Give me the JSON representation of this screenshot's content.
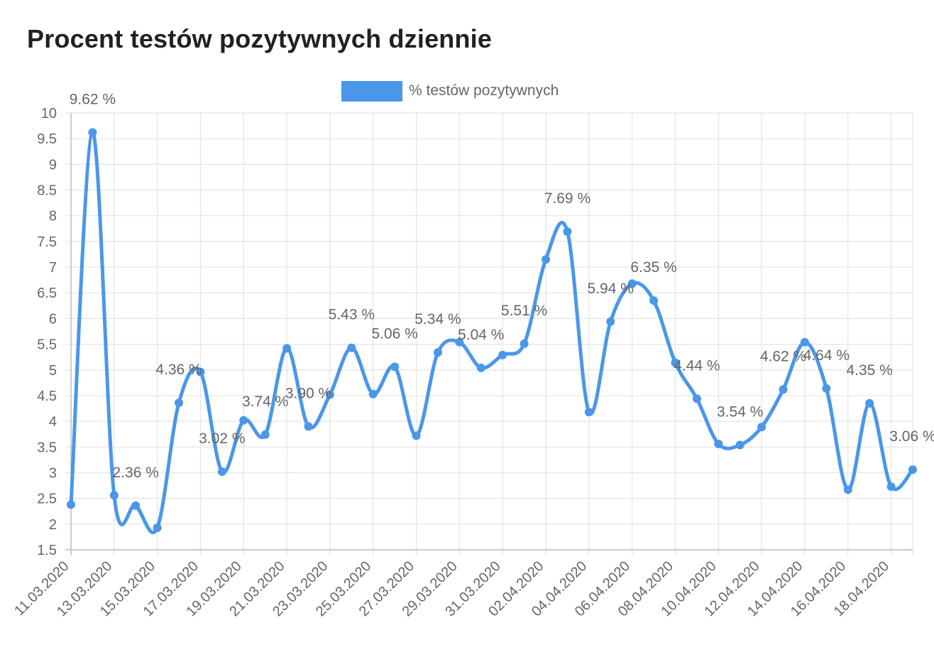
{
  "chart_data": {
    "type": "line",
    "title": "Procent testów pozytywnych dziennie",
    "legend": {
      "position": "top",
      "entries": [
        "% testów pozytywnych"
      ]
    },
    "grid": true,
    "color": "#4a97ea",
    "ylim": [
      1.5,
      10
    ],
    "y_ticks": [
      "1.5",
      "2",
      "2.5",
      "3",
      "3.5",
      "4",
      "4.5",
      "5",
      "5.5",
      "6",
      "6.5",
      "7",
      "7.5",
      "8",
      "8.5",
      "9",
      "9.5",
      "10"
    ],
    "x_tick_labels": [
      "11.03.2020",
      "13.03.2020",
      "15.03.2020",
      "17.03.2020",
      "19.03.2020",
      "21.03.2020",
      "23.03.2020",
      "25.03.2020",
      "27.03.2020",
      "29.03.2020",
      "31.03.2020",
      "02.04.2020",
      "04.04.2020",
      "06.04.2020",
      "08.04.2020",
      "10.04.2020",
      "12.04.2020",
      "14.04.2020",
      "16.04.2020",
      "18.04.2020"
    ],
    "series": [
      {
        "name": "% testów pozytywnych",
        "x": [
          "11.03.2020",
          "12.03.2020",
          "13.03.2020",
          "14.03.2020",
          "15.03.2020",
          "16.03.2020",
          "17.03.2020",
          "18.03.2020",
          "19.03.2020",
          "20.03.2020",
          "21.03.2020",
          "22.03.2020",
          "23.03.2020",
          "24.03.2020",
          "25.03.2020",
          "26.03.2020",
          "27.03.2020",
          "28.03.2020",
          "29.03.2020",
          "30.03.2020",
          "31.03.2020",
          "01.04.2020",
          "02.04.2020",
          "03.04.2020",
          "04.04.2020",
          "05.04.2020",
          "06.04.2020",
          "07.04.2020",
          "08.04.2020",
          "09.04.2020",
          "10.04.2020",
          "11.04.2020",
          "12.04.2020",
          "13.04.2020",
          "14.04.2020",
          "15.04.2020",
          "16.04.2020",
          "17.04.2020",
          "18.04.2020",
          "19.04.2020"
        ],
        "values": [
          2.38,
          9.62,
          2.56,
          2.36,
          1.93,
          4.36,
          4.96,
          3.02,
          4.02,
          3.74,
          5.42,
          3.9,
          4.52,
          5.43,
          4.53,
          5.06,
          3.72,
          5.34,
          5.54,
          5.04,
          5.29,
          5.51,
          7.15,
          7.69,
          4.18,
          5.94,
          6.68,
          6.35,
          5.14,
          4.44,
          3.56,
          3.54,
          3.89,
          4.62,
          5.54,
          4.64,
          2.67,
          4.35,
          2.73,
          3.06
        ]
      }
    ],
    "data_labels": [
      {
        "index": 1,
        "text": "9.62 %"
      },
      {
        "index": 3,
        "text": "2.36 %"
      },
      {
        "index": 5,
        "text": "4.36 %"
      },
      {
        "index": 7,
        "text": "3.02 %"
      },
      {
        "index": 9,
        "text": "3.74 %"
      },
      {
        "index": 11,
        "text": "3.90 %"
      },
      {
        "index": 13,
        "text": "5.43 %"
      },
      {
        "index": 15,
        "text": "5.06 %"
      },
      {
        "index": 17,
        "text": "5.34 %"
      },
      {
        "index": 19,
        "text": "5.04 %"
      },
      {
        "index": 21,
        "text": "5.51 %"
      },
      {
        "index": 23,
        "text": "7.69 %"
      },
      {
        "index": 25,
        "text": "5.94 %"
      },
      {
        "index": 27,
        "text": "6.35 %"
      },
      {
        "index": 29,
        "text": "4.44 %"
      },
      {
        "index": 31,
        "text": "3.54 %"
      },
      {
        "index": 33,
        "text": "4.62 %"
      },
      {
        "index": 35,
        "text": "4.64 %"
      },
      {
        "index": 37,
        "text": "4.35 %"
      },
      {
        "index": 39,
        "text": "3.06 %"
      }
    ]
  }
}
